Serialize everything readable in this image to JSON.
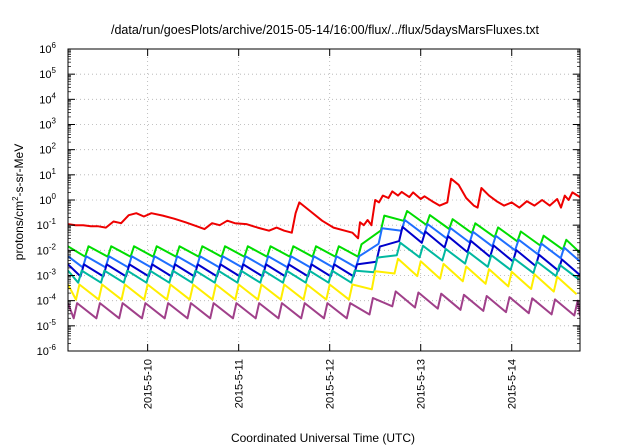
{
  "chart_data": {
    "type": "line",
    "title": "/data/run/goesPlots/archive/2015-05-14/16:00/flux/../flux/5daysMarsFluxes.txt",
    "xlabel": "Coordinated Universal Time (UTC)",
    "ylabel": "protons/cm²-s-sr-MeV",
    "ylabel_parts": {
      "pre": "protons/cm",
      "sup": "2",
      "post": "-s-sr-MeV"
    },
    "y_scale": "log",
    "ylim": [
      1e-06,
      1000000.0
    ],
    "y_ticks": [
      {
        "base": "10",
        "exp": "6"
      },
      {
        "base": "10",
        "exp": "5"
      },
      {
        "base": "10",
        "exp": "4"
      },
      {
        "base": "10",
        "exp": "3"
      },
      {
        "base": "10",
        "exp": "2"
      },
      {
        "base": "10",
        "exp": "1"
      },
      {
        "base": "10",
        "exp": "0"
      },
      {
        "base": "10",
        "exp": "-1"
      },
      {
        "base": "10",
        "exp": "-2"
      },
      {
        "base": "10",
        "exp": "-3"
      },
      {
        "base": "10",
        "exp": "-4"
      },
      {
        "base": "10",
        "exp": "-5"
      },
      {
        "base": "10",
        "exp": "-6"
      }
    ],
    "xlim": [
      "2015-05-09 03:00",
      "2015-05-14 18:00"
    ],
    "x_ticks": [
      "2015-5-10",
      "2015-5-11",
      "2015-5-12",
      "2015-5-13",
      "2015-5-14"
    ],
    "grid": true,
    "series": [
      {
        "color": "#ee0000",
        "points": [
          [
            "2015-05-09 03:00",
            0.11
          ],
          [
            "2015-05-09 05:00",
            0.1
          ],
          [
            "2015-05-09 07:00",
            0.1
          ],
          [
            "2015-05-09 09:00",
            0.09
          ],
          [
            "2015-05-09 11:00",
            0.09
          ],
          [
            "2015-05-09 13:00",
            0.08
          ],
          [
            "2015-05-09 15:00",
            0.14
          ],
          [
            "2015-05-09 17:00",
            0.12
          ],
          [
            "2015-05-09 19:00",
            0.25
          ],
          [
            "2015-05-09 21:00",
            0.3
          ],
          [
            "2015-05-09 23:00",
            0.22
          ],
          [
            "2015-05-10 01:00",
            0.3
          ],
          [
            "2015-05-10 04:00",
            0.24
          ],
          [
            "2015-05-10 07:00",
            0.18
          ],
          [
            "2015-05-10 10:00",
            0.13
          ],
          [
            "2015-05-10 13:00",
            0.09
          ],
          [
            "2015-05-10 15:00",
            0.07
          ],
          [
            "2015-05-10 17:00",
            0.12
          ],
          [
            "2015-05-10 19:00",
            0.1
          ],
          [
            "2015-05-10 21:00",
            0.15
          ],
          [
            "2015-05-10 23:00",
            0.12
          ],
          [
            "2015-05-11 02:00",
            0.11
          ],
          [
            "2015-05-11 05:00",
            0.08
          ],
          [
            "2015-05-11 08:00",
            0.06
          ],
          [
            "2015-05-11 10:00",
            0.08
          ],
          [
            "2015-05-11 12:00",
            0.06
          ],
          [
            "2015-05-11 14:00",
            0.05
          ],
          [
            "2015-05-11 15:00",
            0.3
          ],
          [
            "2015-05-11 16:00",
            0.8
          ],
          [
            "2015-05-11 19:00",
            0.35
          ],
          [
            "2015-05-11 22:00",
            0.15
          ],
          [
            "2015-05-12 01:00",
            0.08
          ],
          [
            "2015-05-12 04:00",
            0.06
          ],
          [
            "2015-05-12 06:00",
            0.05
          ],
          [
            "2015-05-12 07:30",
            0.03
          ],
          [
            "2015-05-12 08:00",
            0.13
          ],
          [
            "2015-05-12 09:00",
            0.1
          ],
          [
            "2015-05-12 10:00",
            0.16
          ],
          [
            "2015-05-12 11:00",
            0.1
          ],
          [
            "2015-05-12 12:00",
            1.0
          ],
          [
            "2015-05-12 13:00",
            0.8
          ],
          [
            "2015-05-12 14:00",
            1.5
          ],
          [
            "2015-05-12 15:30",
            1.2
          ],
          [
            "2015-05-12 16:30",
            2.2
          ],
          [
            "2015-05-12 18:00",
            1.5
          ],
          [
            "2015-05-12 19:00",
            2.1
          ],
          [
            "2015-05-12 21:00",
            1.3
          ],
          [
            "2015-05-12 22:00",
            2.0
          ],
          [
            "2015-05-13 00:00",
            1.1
          ],
          [
            "2015-05-13 01:00",
            1.4
          ],
          [
            "2015-05-13 03:00",
            0.9
          ],
          [
            "2015-05-13 05:00",
            0.6
          ],
          [
            "2015-05-13 07:00",
            0.8
          ],
          [
            "2015-05-13 08:00",
            7.0
          ],
          [
            "2015-05-13 10:00",
            4.0
          ],
          [
            "2015-05-13 12:00",
            1.2
          ],
          [
            "2015-05-13 14:00",
            0.6
          ],
          [
            "2015-05-13 15:00",
            0.5
          ],
          [
            "2015-05-13 16:00",
            3.0
          ],
          [
            "2015-05-13 18:00",
            1.5
          ],
          [
            "2015-05-13 20:00",
            0.9
          ],
          [
            "2015-05-13 22:00",
            0.6
          ],
          [
            "2015-05-14 00:00",
            0.8
          ],
          [
            "2015-05-14 02:00",
            0.5
          ],
          [
            "2015-05-14 04:00",
            0.9
          ],
          [
            "2015-05-14 06:00",
            0.6
          ],
          [
            "2015-05-14 08:00",
            1.0
          ],
          [
            "2015-05-14 10:00",
            0.6
          ],
          [
            "2015-05-14 12:00",
            1.1
          ],
          [
            "2015-05-14 13:00",
            0.5
          ],
          [
            "2015-05-14 14:00",
            1.5
          ],
          [
            "2015-05-14 15:00",
            1.0
          ],
          [
            "2015-05-14 16:00",
            2.0
          ],
          [
            "2015-05-14 18:00",
            1.3
          ]
        ]
      },
      {
        "color": "#00dd00",
        "base": 0.009,
        "period_h": 6,
        "amp": 2.6,
        "event": {
          "start": "2015-05-12 08:00",
          "peak": "2015-05-12 16:00",
          "peak_value": 0.3,
          "end_value": 0.013,
          "end": "2015-05-14 18:00"
        }
      },
      {
        "color": "#1f6fff",
        "base": 0.0035,
        "period_h": 6,
        "amp": 2.8,
        "event": {
          "start": "2015-05-12 08:00",
          "peak": "2015-05-12 16:00",
          "peak_value": 0.12,
          "end_value": 0.006,
          "end": "2015-05-14 18:00"
        }
      },
      {
        "color": "#0000cc",
        "base": 0.0016,
        "period_h": 6,
        "amp": 3.0,
        "event": {
          "start": "2015-05-12 08:00",
          "peak": "2015-05-12 19:00",
          "peak_value": 0.05,
          "end_value": 0.0018,
          "end": "2015-05-14 18:00"
        }
      },
      {
        "color": "#00b8a0",
        "base": 0.0009,
        "period_h": 6,
        "amp": 3.0,
        "event": {
          "start": "2015-05-12 08:00",
          "peak": "2015-05-12 18:00",
          "peak_value": 0.012,
          "end_value": 0.0012,
          "end": "2015-05-14 18:00"
        }
      },
      {
        "color": "#ffee00",
        "base": 0.00022,
        "period_h": 6,
        "amp": 4.0,
        "event": {
          "start": "2015-05-12 08:00",
          "peak": "2015-05-12 16:00",
          "peak_value": 0.0025,
          "end_value": 0.00035,
          "end": "2015-05-14 18:00"
        }
      },
      {
        "color": "#a0408a",
        "base": 4e-05,
        "period_h": 6,
        "amp": 4.0,
        "event": {
          "start": "2015-05-12 08:00",
          "peak": "2015-05-12 16:00",
          "peak_value": 0.00012,
          "end_value": 5e-05,
          "end": "2015-05-14 18:00"
        }
      }
    ]
  }
}
